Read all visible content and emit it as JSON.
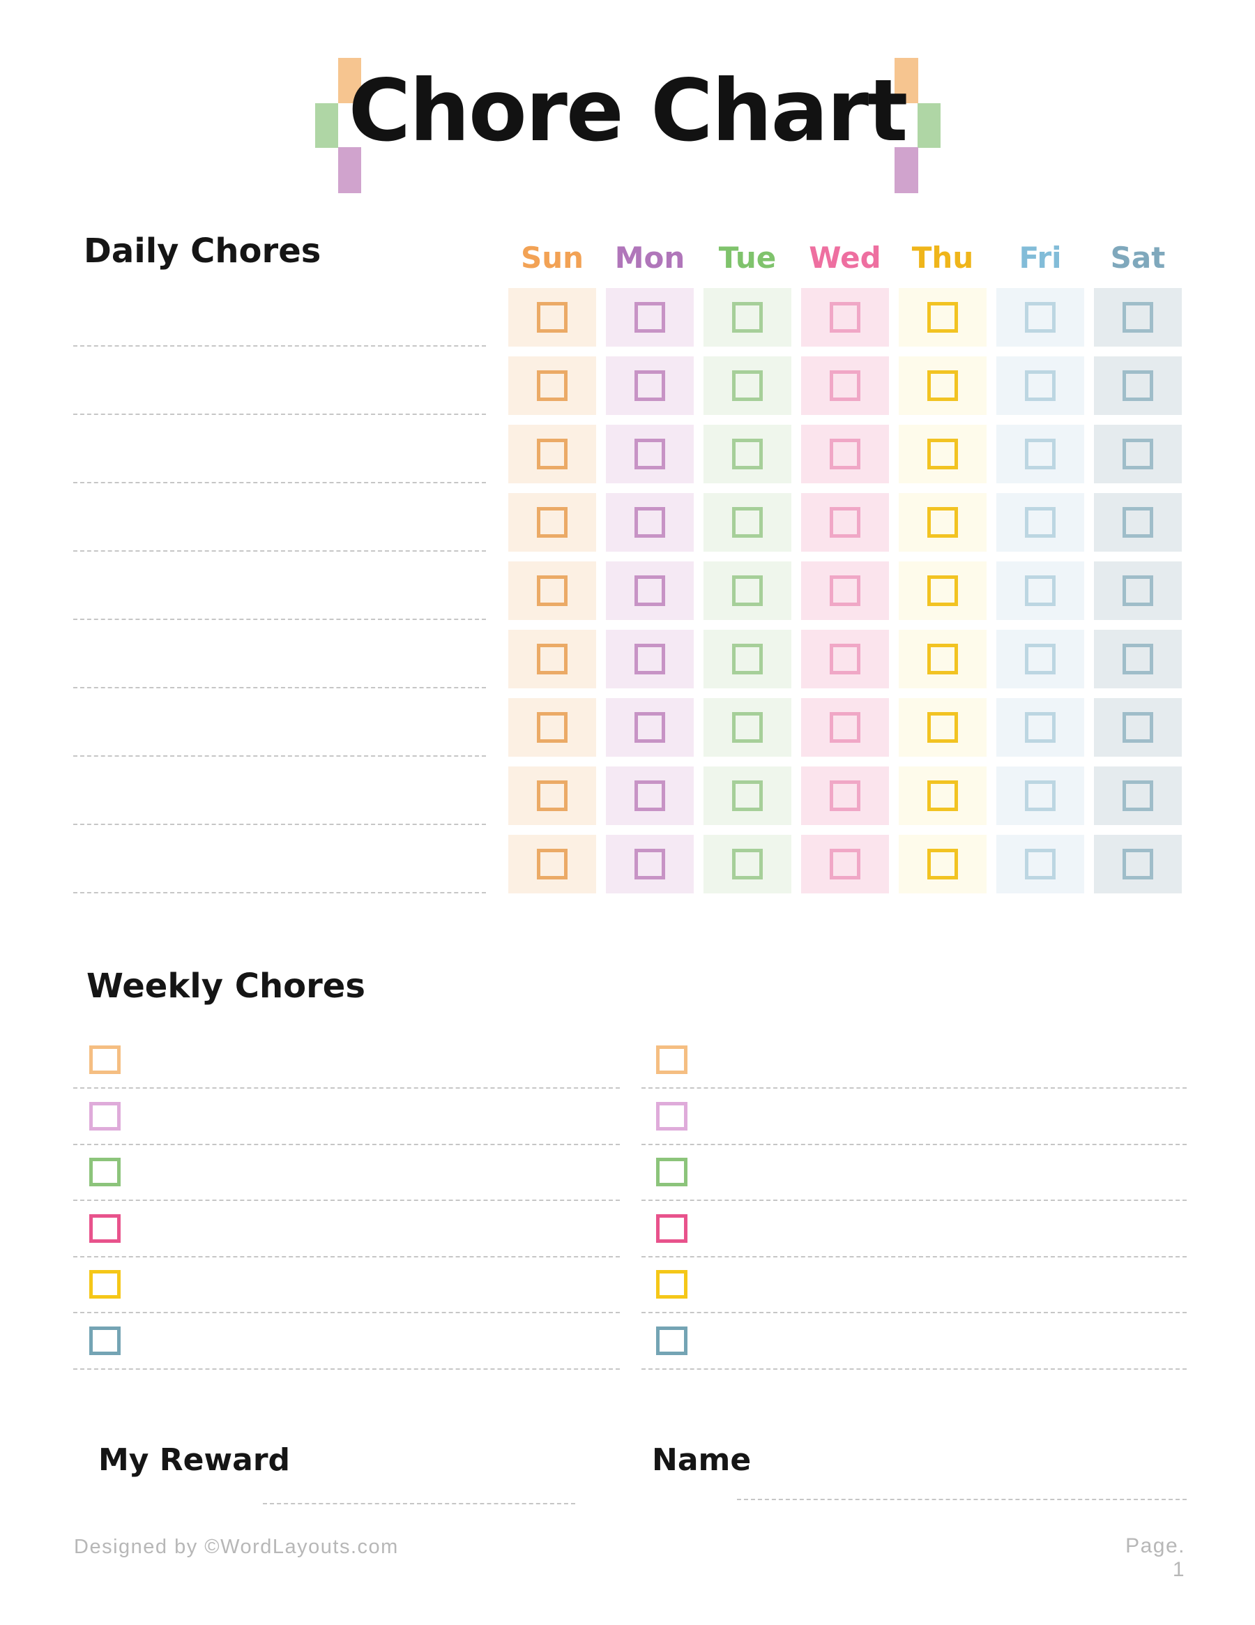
{
  "title": "Chore Chart",
  "decor": {
    "orange": "#F6C590",
    "green": "#AFD6A5",
    "purple": "#D0A3CD"
  },
  "daily": {
    "heading": "Daily Chores",
    "rows": 9,
    "line_count": 9
  },
  "days": [
    {
      "label": "Sun",
      "text_color": "#F2A255",
      "cell_bg": "#FCF0E3",
      "box_border": "#EBAA66"
    },
    {
      "label": "Mon",
      "text_color": "#B076BA",
      "cell_bg": "#F5E9F4",
      "box_border": "#C793C5"
    },
    {
      "label": "Tue",
      "text_color": "#7FC36C",
      "cell_bg": "#EFF6EC",
      "box_border": "#A6CF99"
    },
    {
      "label": "Wed",
      "text_color": "#EE6FA0",
      "cell_bg": "#FBE4ED",
      "box_border": "#F0A7C6"
    },
    {
      "label": "Thu",
      "text_color": "#EFB51A",
      "cell_bg": "#FEFBEB",
      "box_border": "#F2C322"
    },
    {
      "label": "Fri",
      "text_color": "#82BCD8",
      "cell_bg": "#EFF5F9",
      "box_border": "#BCD6E2"
    },
    {
      "label": "Sat",
      "text_color": "#7FA8BC",
      "cell_bg": "#E5EBEE",
      "box_border": "#9FBDC9"
    }
  ],
  "weekly": {
    "heading": "Weekly Chores",
    "items_per_column": 6,
    "columns": 2,
    "box_colors": [
      "#F5BE82",
      "#DFABDA",
      "#8CC47B",
      "#E8538C",
      "#F5C718",
      "#74A4B4"
    ]
  },
  "fields": {
    "reward_label": "My Reward",
    "name_label": "Name"
  },
  "footer": {
    "credit": "Designed by ©WordLayouts.com",
    "page": "Page. 1"
  },
  "line_color": "#C6C6C6"
}
